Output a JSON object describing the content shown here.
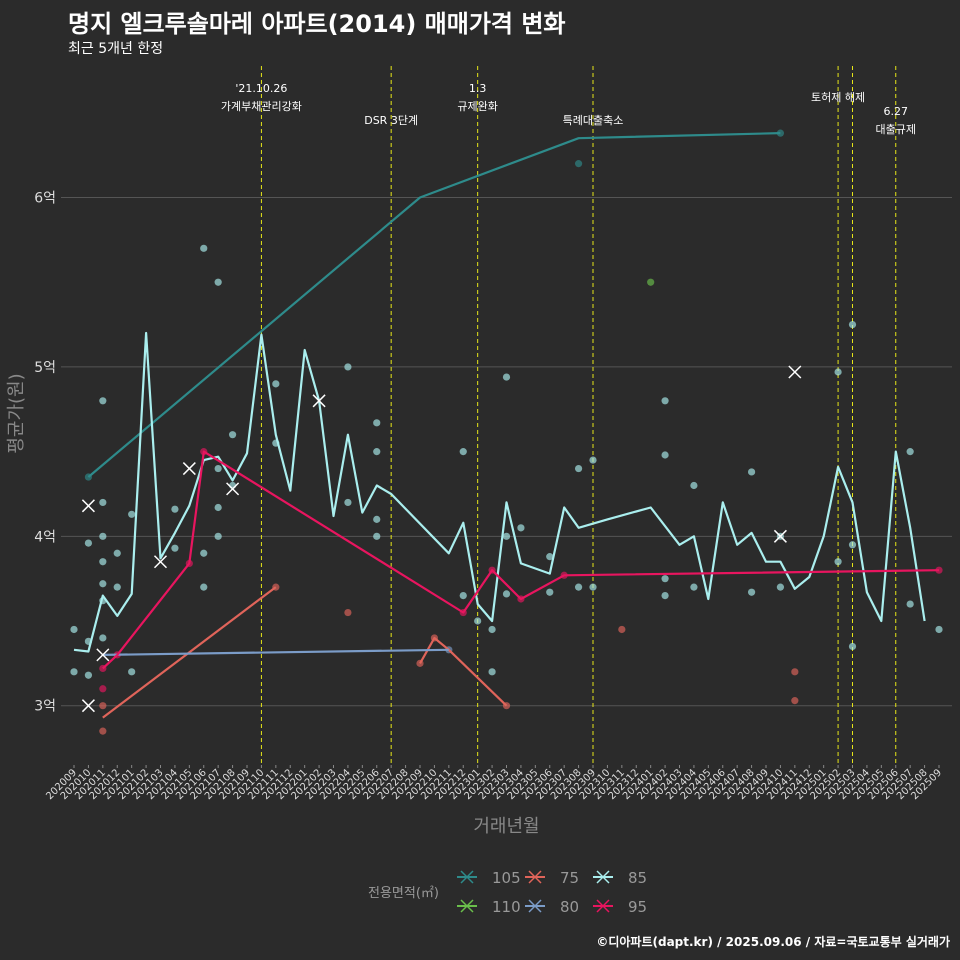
{
  "title": "명지 엘크루솔마레 아파트(2014) 매매가격 변화",
  "subtitle": "최근 5개년 한정",
  "footer": "©디아파트(dapt.kr) / 2025.09.06 / 자료=국토교통부 실거래가",
  "colors": {
    "background": "#2b2b2b",
    "grid": "#555555",
    "event_line": "#e6e619",
    "s105": "#2e8b8b",
    "s110": "#6abf4b",
    "s75": "#e0645a",
    "s80": "#7b9cc8",
    "s85": "#aaeeee",
    "s95": "#e8155f"
  },
  "chart_data": {
    "type": "line",
    "xlabel": "거래년월",
    "ylabel": "평균가(원)",
    "ylim": [
      2.65,
      6.8
    ],
    "yticks": [
      3,
      4,
      5,
      6
    ],
    "ytick_labels": [
      "3억",
      "4억",
      "5억",
      "6억"
    ],
    "months": [
      "202009",
      "202010",
      "202011",
      "202012",
      "202101",
      "202102",
      "202103",
      "202104",
      "202105",
      "202106",
      "202107",
      "202108",
      "202109",
      "202110",
      "202111",
      "202112",
      "202201",
      "202202",
      "202203",
      "202204",
      "202205",
      "202206",
      "202207",
      "202208",
      "202209",
      "202210",
      "202211",
      "202212",
      "202301",
      "202302",
      "202303",
      "202304",
      "202305",
      "202306",
      "202307",
      "202308",
      "202309",
      "202310",
      "202311",
      "202312",
      "202401",
      "202402",
      "202403",
      "202404",
      "202405",
      "202406",
      "202407",
      "202408",
      "202409",
      "202410",
      "202411",
      "202412",
      "202501",
      "202502",
      "202503",
      "202504",
      "202505",
      "202506",
      "202507",
      "202508",
      "202509"
    ],
    "events": [
      {
        "month": "202110",
        "label1": "'21.10.26",
        "label2": "가계부채관리강화",
        "row": 0
      },
      {
        "month": "202207",
        "label1": "DSR 3단계",
        "label2": "",
        "row": 2
      },
      {
        "month": "202301",
        "label1": "1.3",
        "label2": "규제완화",
        "row": 0
      },
      {
        "month": "202309",
        "label1": "특례대출축소",
        "label2": "",
        "row": 2
      },
      {
        "month": "202502",
        "label1": "토허제 해제",
        "label2": "",
        "row": 1
      },
      {
        "month": "202503",
        "label1": "",
        "label2": "",
        "row": 1
      },
      {
        "month": "202506",
        "label1": "6.27",
        "label2": "대출규제",
        "row": 3
      }
    ],
    "legend_title": "전용면적(㎡)",
    "series": [
      {
        "name": "105",
        "color_key": "s105",
        "line": [
          [
            "202010",
            4.35
          ],
          [
            "202209",
            6.0
          ],
          [
            "202308",
            6.35
          ],
          [
            "202410",
            6.38
          ]
        ],
        "points": [
          [
            "202010",
            4.35
          ],
          [
            "202308",
            6.2
          ],
          [
            "202410",
            6.38
          ]
        ],
        "crosses": []
      },
      {
        "name": "110",
        "color_key": "s110",
        "line": [],
        "points": [
          [
            "202401",
            5.5
          ]
        ],
        "crosses": []
      },
      {
        "name": "75",
        "color_key": "s75",
        "line": [
          [
            "202011",
            2.93
          ],
          [
            "202111",
            3.7
          ]
        ],
        "line2": [
          [
            "202209",
            3.25
          ],
          [
            "202210",
            3.4
          ],
          [
            "202211",
            3.33
          ],
          [
            "202303",
            3.0
          ]
        ],
        "points": [
          [
            "202011",
            2.85
          ],
          [
            "202011",
            3.0
          ],
          [
            "202111",
            3.7
          ],
          [
            "202204",
            3.55
          ],
          [
            "202209",
            3.25
          ],
          [
            "202210",
            3.4
          ],
          [
            "202303",
            3.0
          ],
          [
            "202311",
            3.45
          ],
          [
            "202411",
            3.2
          ],
          [
            "202411",
            3.03
          ]
        ],
        "crosses": []
      },
      {
        "name": "80",
        "color_key": "s80",
        "line": [
          [
            "202011",
            3.3
          ],
          [
            "202211",
            3.33
          ]
        ],
        "points": [
          [
            "202211",
            3.33
          ]
        ],
        "crosses": []
      },
      {
        "name": "85",
        "color_key": "s85",
        "line": [
          [
            "202009",
            3.33
          ],
          [
            "202010",
            3.32
          ],
          [
            "202011",
            3.65
          ],
          [
            "202012",
            3.53
          ],
          [
            "202101",
            3.66
          ],
          [
            "202102",
            5.2
          ],
          [
            "202103",
            3.87
          ],
          [
            "202104",
            4.02
          ],
          [
            "202105",
            4.18
          ],
          [
            "202106",
            4.45
          ],
          [
            "202107",
            4.47
          ],
          [
            "202108",
            4.33
          ],
          [
            "202109",
            4.49
          ],
          [
            "202110",
            5.19
          ],
          [
            "202111",
            4.6
          ],
          [
            "202112",
            4.27
          ],
          [
            "202201",
            5.1
          ],
          [
            "202202",
            4.8
          ],
          [
            "202203",
            4.12
          ],
          [
            "202204",
            4.6
          ],
          [
            "202205",
            4.14
          ],
          [
            "202206",
            4.3
          ],
          [
            "202207",
            4.25
          ],
          [
            "202211",
            3.9
          ],
          [
            "202212",
            4.08
          ],
          [
            "202301",
            3.6
          ],
          [
            "202302",
            3.5
          ],
          [
            "202303",
            4.2
          ],
          [
            "202304",
            3.84
          ],
          [
            "202306",
            3.78
          ],
          [
            "202307",
            4.17
          ],
          [
            "202308",
            4.05
          ],
          [
            "202310",
            4.1
          ],
          [
            "202401",
            4.17
          ],
          [
            "202403",
            3.95
          ],
          [
            "202404",
            4.0
          ],
          [
            "202405",
            3.63
          ],
          [
            "202406",
            4.2
          ],
          [
            "202407",
            3.95
          ],
          [
            "202408",
            4.02
          ],
          [
            "202409",
            3.85
          ],
          [
            "202410",
            3.85
          ],
          [
            "202411",
            3.69
          ],
          [
            "202412",
            3.76
          ],
          [
            "202501",
            4.0
          ],
          [
            "202502",
            4.41
          ],
          [
            "202503",
            4.2
          ],
          [
            "202504",
            3.67
          ],
          [
            "202505",
            3.5
          ],
          [
            "202506",
            4.5
          ],
          [
            "202507",
            4.05
          ],
          [
            "202508",
            3.5
          ]
        ],
        "points": [
          [
            "202009",
            3.45
          ],
          [
            "202009",
            3.2
          ],
          [
            "202010",
            3.38
          ],
          [
            "202010",
            3.18
          ],
          [
            "202010",
            3.96
          ],
          [
            "202011",
            4.8
          ],
          [
            "202011",
            4.2
          ],
          [
            "202011",
            4.0
          ],
          [
            "202011",
            3.85
          ],
          [
            "202011",
            3.72
          ],
          [
            "202011",
            3.62
          ],
          [
            "202011",
            3.4
          ],
          [
            "202012",
            3.9
          ],
          [
            "202012",
            3.7
          ],
          [
            "202101",
            4.13
          ],
          [
            "202101",
            3.2
          ],
          [
            "202104",
            4.16
          ],
          [
            "202104",
            3.93
          ],
          [
            "202106",
            5.7
          ],
          [
            "202106",
            3.9
          ],
          [
            "202106",
            3.7
          ],
          [
            "202107",
            5.5
          ],
          [
            "202107",
            4.4
          ],
          [
            "202107",
            4.17
          ],
          [
            "202107",
            4.0
          ],
          [
            "202108",
            4.6
          ],
          [
            "202108",
            4.3
          ],
          [
            "202111",
            4.9
          ],
          [
            "202111",
            4.55
          ],
          [
            "202204",
            5.0
          ],
          [
            "202204",
            4.2
          ],
          [
            "202206",
            4.67
          ],
          [
            "202206",
            4.5
          ],
          [
            "202206",
            4.0
          ],
          [
            "202206",
            4.1
          ],
          [
            "202212",
            4.5
          ],
          [
            "202212",
            3.65
          ],
          [
            "202301",
            3.5
          ],
          [
            "202302",
            3.2
          ],
          [
            "202302",
            3.45
          ],
          [
            "202303",
            4.94
          ],
          [
            "202303",
            4.0
          ],
          [
            "202303",
            3.66
          ],
          [
            "202304",
            4.05
          ],
          [
            "202306",
            3.67
          ],
          [
            "202306",
            3.88
          ],
          [
            "202308",
            4.4
          ],
          [
            "202308",
            3.7
          ],
          [
            "202309",
            4.45
          ],
          [
            "202309",
            3.7
          ],
          [
            "202402",
            4.8
          ],
          [
            "202402",
            4.48
          ],
          [
            "202402",
            3.75
          ],
          [
            "202402",
            3.65
          ],
          [
            "202404",
            4.3
          ],
          [
            "202404",
            3.7
          ],
          [
            "202408",
            4.38
          ],
          [
            "202408",
            3.67
          ],
          [
            "202410",
            4.0
          ],
          [
            "202410",
            3.7
          ],
          [
            "202502",
            4.97
          ],
          [
            "202502",
            3.85
          ],
          [
            "202503",
            5.25
          ],
          [
            "202503",
            3.95
          ],
          [
            "202503",
            3.35
          ],
          [
            "202507",
            4.5
          ],
          [
            "202507",
            3.6
          ],
          [
            "202509",
            3.45
          ]
        ],
        "crosses": [
          [
            "202010",
            4.18
          ],
          [
            "202011",
            3.3
          ],
          [
            "202103",
            3.85
          ],
          [
            "202105",
            4.4
          ],
          [
            "202108",
            4.28
          ],
          [
            "202202",
            4.8
          ],
          [
            "202411",
            4.97
          ],
          [
            "202410",
            4.0
          ],
          [
            "202010",
            3.0
          ]
        ]
      },
      {
        "name": "95",
        "color_key": "s95",
        "line": [
          [
            "202011",
            3.22
          ],
          [
            "202012",
            3.3
          ],
          [
            "202105",
            3.84
          ],
          [
            "202106",
            4.5
          ],
          [
            "202212",
            3.55
          ],
          [
            "202302",
            3.8
          ],
          [
            "202304",
            3.63
          ],
          [
            "202307",
            3.77
          ],
          [
            "202509",
            3.8
          ]
        ],
        "points": [
          [
            "202011",
            3.22
          ],
          [
            "202011",
            3.1
          ],
          [
            "202012",
            3.3
          ],
          [
            "202105",
            3.84
          ],
          [
            "202106",
            4.5
          ],
          [
            "202212",
            3.55
          ],
          [
            "202302",
            3.8
          ],
          [
            "202304",
            3.63
          ],
          [
            "202307",
            3.77
          ],
          [
            "202509",
            3.8
          ]
        ],
        "crosses": []
      }
    ]
  }
}
